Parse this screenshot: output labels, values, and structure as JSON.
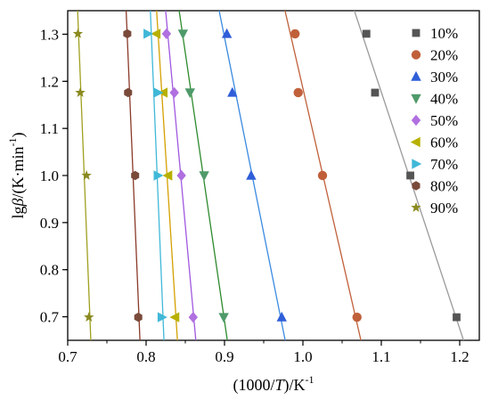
{
  "chart_data": {
    "type": "scatter",
    "title": "",
    "xlabel": "(1000/T)/K-1",
    "ylabel": "lgβ/(K·min-1)",
    "xlabel_parts": [
      "(1000/",
      "T",
      ")/K",
      "-1"
    ],
    "ylabel_parts": [
      "lg",
      "β",
      "/(K·min",
      "-1",
      ")"
    ],
    "xlim": [
      0.7,
      1.225
    ],
    "ylim": [
      0.65,
      1.35
    ],
    "xticks": [
      "0.7",
      "0.8",
      "0.9",
      "1.0",
      "1.1",
      "1.2"
    ],
    "yticks": [
      "0.7",
      "0.8",
      "0.9",
      "1.0",
      "1.1",
      "1.2",
      "1.3"
    ],
    "grid": false,
    "legend_position": "top-right",
    "series": [
      {
        "name": "10%",
        "marker": "square",
        "color": "#555555",
        "line_color": "#9a9a9a",
        "points": [
          [
            1.196,
            0.699
          ],
          [
            1.137,
            1.0
          ],
          [
            1.092,
            1.176
          ],
          [
            1.081,
            1.301
          ]
        ]
      },
      {
        "name": "20%",
        "marker": "circle",
        "color": "#c0603a",
        "line_color": "#c0603a",
        "points": [
          [
            1.069,
            0.699
          ],
          [
            1.025,
            1.0
          ],
          [
            0.994,
            1.176
          ],
          [
            0.99,
            1.301
          ]
        ]
      },
      {
        "name": "30%",
        "marker": "triangle-up",
        "color": "#2f5ed8",
        "line_color": "#3a8ae0",
        "points": [
          [
            0.973,
            0.699
          ],
          [
            0.934,
            1.0
          ],
          [
            0.91,
            1.176
          ],
          [
            0.903,
            1.301
          ]
        ]
      },
      {
        "name": "40%",
        "marker": "triangle-down",
        "color": "#4f9a6a",
        "line_color": "#2e8a2e",
        "points": [
          [
            0.899,
            0.699
          ],
          [
            0.874,
            1.0
          ],
          [
            0.856,
            1.176
          ],
          [
            0.847,
            1.301
          ]
        ]
      },
      {
        "name": "50%",
        "marker": "diamond",
        "color": "#b070e0",
        "line_color": "#a058e0",
        "points": [
          [
            0.86,
            0.699
          ],
          [
            0.845,
            1.0
          ],
          [
            0.836,
            1.176
          ],
          [
            0.826,
            1.301
          ]
        ]
      },
      {
        "name": "60%",
        "marker": "triangle-left",
        "color": "#b8b000",
        "line_color": "#d4a000",
        "points": [
          [
            0.837,
            0.699
          ],
          [
            0.828,
            1.0
          ],
          [
            0.822,
            1.176
          ],
          [
            0.813,
            1.301
          ]
        ]
      },
      {
        "name": "70%",
        "marker": "triangle-right",
        "color": "#40b8d8",
        "line_color": "#40b8d8",
        "points": [
          [
            0.82,
            0.699
          ],
          [
            0.815,
            1.0
          ],
          [
            0.815,
            1.176
          ],
          [
            0.802,
            1.301
          ]
        ]
      },
      {
        "name": "80%",
        "marker": "hexagon",
        "color": "#7a4a3a",
        "line_color": "#8a3a2a",
        "points": [
          [
            0.79,
            0.699
          ],
          [
            0.786,
            1.0
          ],
          [
            0.777,
            1.176
          ],
          [
            0.776,
            1.301
          ]
        ]
      },
      {
        "name": "90%",
        "marker": "star",
        "color": "#8a8a20",
        "line_color": "#a0a020",
        "points": [
          [
            0.727,
            0.699
          ],
          [
            0.724,
            1.0
          ],
          [
            0.716,
            1.176
          ],
          [
            0.713,
            1.301
          ]
        ]
      }
    ]
  }
}
